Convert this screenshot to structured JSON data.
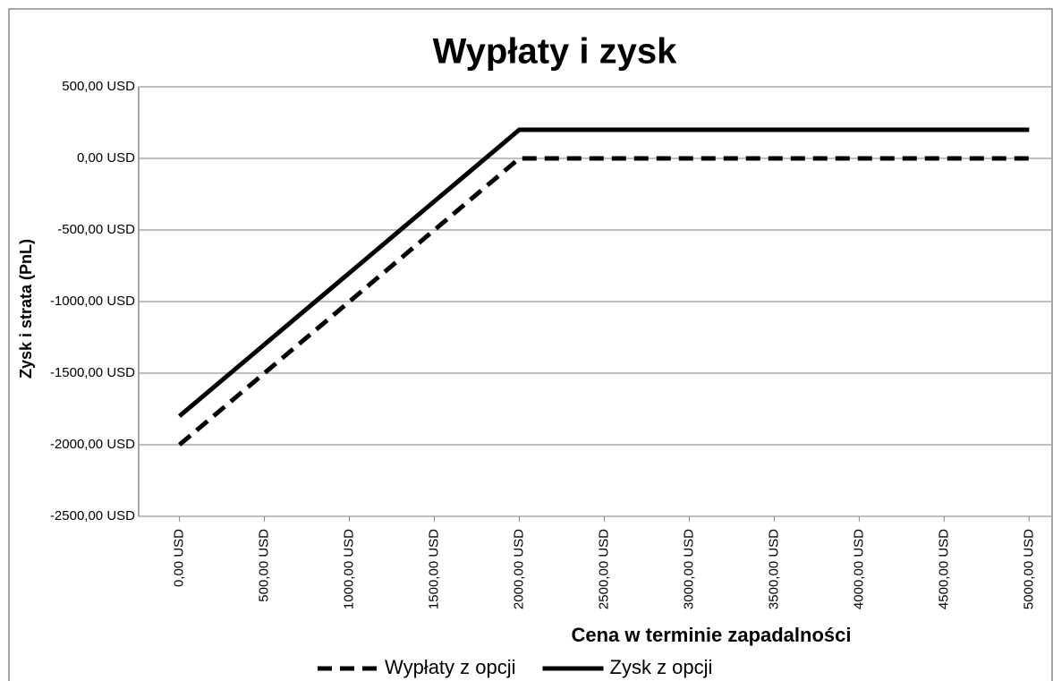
{
  "chart_data": {
    "type": "line",
    "title": "Wypłaty i zysk",
    "x_label": "Cena w terminie zapadalności",
    "y_label": "Zysk i strata (PnL)",
    "x": [
      0,
      500,
      1000,
      1500,
      2000,
      2500,
      3000,
      3500,
      4000,
      4500,
      5000
    ],
    "series": [
      {
        "name": "Wypłaty z opcji",
        "color": "#000000",
        "style": "dashed",
        "values": [
          -2000,
          -1500,
          -1000,
          -500,
          0,
          0,
          0,
          0,
          0,
          0,
          0
        ]
      },
      {
        "name": "Zysk z opcji",
        "color": "#000000",
        "style": "solid",
        "values": [
          -1800,
          -1300,
          -800,
          -300,
          200,
          200,
          200,
          200,
          200,
          200,
          200
        ]
      }
    ],
    "xlim": [
      -240,
      5130
    ],
    "xticks": [
      {
        "value": 0,
        "label": "0,00 USD"
      },
      {
        "value": 500,
        "label": "500,00 USD"
      },
      {
        "value": 1000,
        "label": "1000,00 USD"
      },
      {
        "value": 1500,
        "label": "1500,00 USD"
      },
      {
        "value": 2000,
        "label": "2000,00 USD"
      },
      {
        "value": 2500,
        "label": "2500,00 USD"
      },
      {
        "value": 3000,
        "label": "3000,00 USD"
      },
      {
        "value": 3500,
        "label": "3500,00 USD"
      },
      {
        "value": 4000,
        "label": "4000,00 USD"
      },
      {
        "value": 4500,
        "label": "4500,00 USD"
      },
      {
        "value": 5000,
        "label": "5000,00 USD"
      }
    ],
    "ylim": [
      -2500,
      500
    ],
    "yticks": [
      {
        "value": -2500,
        "label": "-2500,00 USD"
      },
      {
        "value": -2000,
        "label": "-2000,00 USD"
      },
      {
        "value": -1500,
        "label": "-1500,00 USD"
      },
      {
        "value": -1000,
        "label": "-1000,00 USD"
      },
      {
        "value": -500,
        "label": "-500,00 USD"
      },
      {
        "value": 0,
        "label": "0,00 USD"
      },
      {
        "value": 500,
        "label": "500,00 USD"
      }
    ],
    "grid": true,
    "legend": "bottom"
  }
}
